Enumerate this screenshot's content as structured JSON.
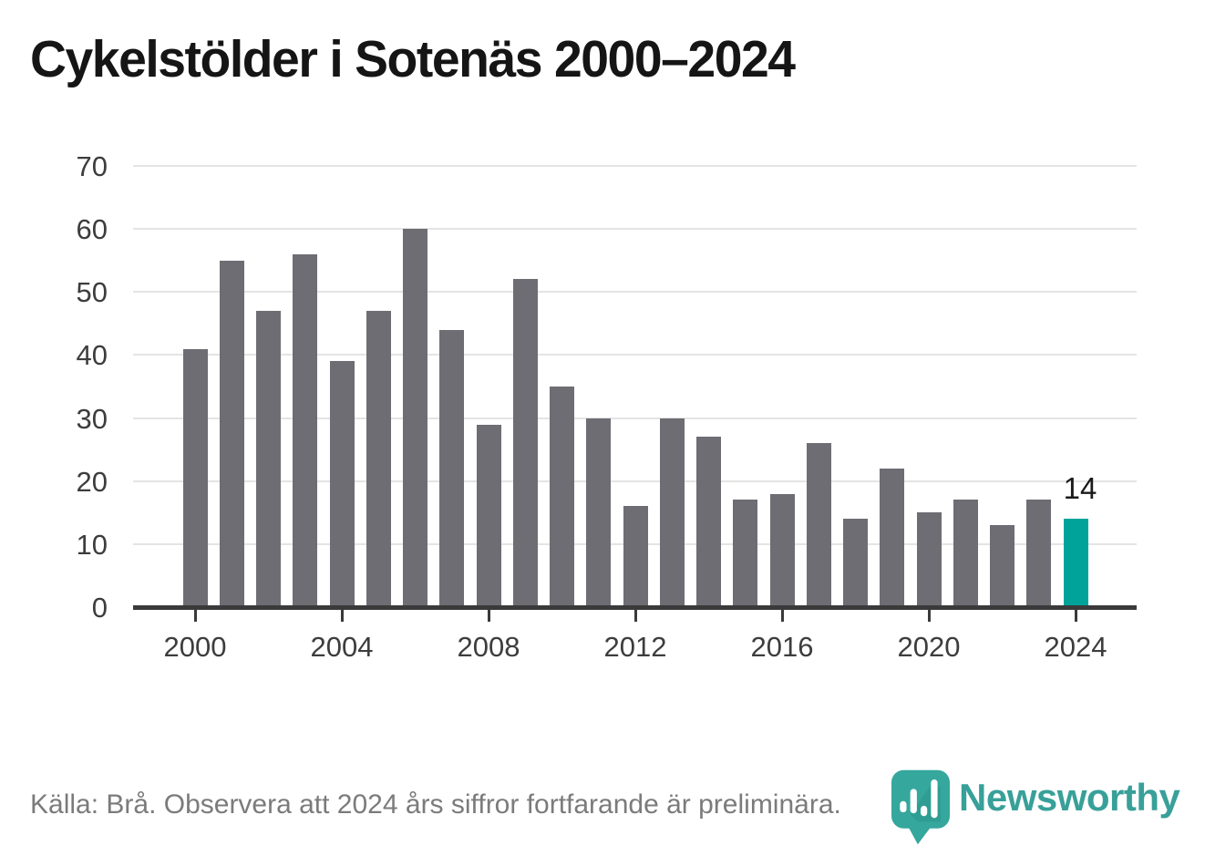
{
  "title": "Cykelstölder i Sotenäs 2000–2024",
  "chart_data": {
    "type": "bar",
    "title": "Cykelstölder i Sotenäs 2000–2024",
    "x": [
      2000,
      2001,
      2002,
      2003,
      2004,
      2005,
      2006,
      2007,
      2008,
      2009,
      2010,
      2011,
      2012,
      2013,
      2014,
      2015,
      2016,
      2017,
      2018,
      2019,
      2020,
      2021,
      2022,
      2023,
      2024
    ],
    "values": [
      41,
      55,
      47,
      56,
      39,
      47,
      60,
      44,
      29,
      52,
      35,
      30,
      16,
      30,
      27,
      17,
      18,
      26,
      14,
      22,
      15,
      17,
      13,
      17,
      14
    ],
    "highlight_index": 24,
    "highlight_value_label": "14",
    "xlabel": "",
    "ylabel": "",
    "ylim": [
      0,
      70
    ],
    "yticks": [
      0,
      10,
      20,
      30,
      40,
      50,
      60,
      70
    ],
    "xticks": [
      2000,
      2004,
      2008,
      2012,
      2016,
      2020,
      2024
    ],
    "grid": "horizontal",
    "legend": "none",
    "colors": {
      "bar": "#6e6d73",
      "highlight_bar": "#00a39a",
      "axis": "#3a3a3a",
      "gridline": "#e4e4e4",
      "tick_label": "#3d3d3d",
      "value_label": "#1a1a1a"
    }
  },
  "footer": {
    "source_text": "Källa: Brå. Observera att 2024 års siffror fortfarande är preliminära."
  },
  "logo": {
    "text": "Newsworthy",
    "icon": "newsworthy-pin-icon",
    "text_color": "#38a099",
    "pin_color": "#35a79d",
    "pin_shadow_color": "#2b958b"
  }
}
